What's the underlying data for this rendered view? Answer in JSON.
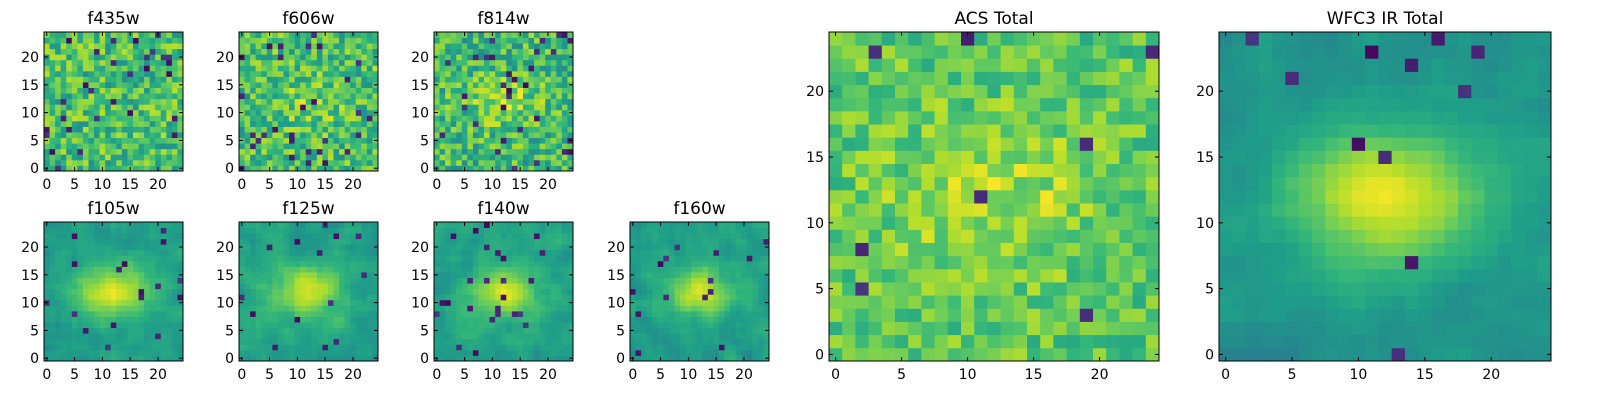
{
  "chart_data": {
    "type": "heatmap",
    "colormap": "viridis",
    "grid": false,
    "panels": [
      {
        "id": "f435w",
        "title": "f435w",
        "size": 25,
        "xticks": [
          0,
          5,
          10,
          15,
          20
        ],
        "yticks": [
          0,
          5,
          10,
          15,
          20
        ],
        "xlim": [
          -0.5,
          24.5
        ],
        "ylim": [
          -0.5,
          24.5
        ],
        "values": "pixelated noise image, 25x25 cells, mostly green/yellow with scattered dark purple pixels; no obvious source"
      },
      {
        "id": "f606w",
        "title": "f606w",
        "size": 25,
        "xticks": [
          0,
          5,
          10,
          15,
          20
        ],
        "yticks": [
          0,
          5,
          10,
          15,
          20
        ],
        "xlim": [
          -0.5,
          24.5
        ],
        "ylim": [
          -0.5,
          24.5
        ],
        "values": "pixelated noise image, 25x25 cells, faint brighter region near center (x~10-15, y~11-14)"
      },
      {
        "id": "f814w",
        "title": "f814w",
        "size": 25,
        "xticks": [
          0,
          5,
          10,
          15,
          20
        ],
        "yticks": [
          0,
          5,
          10,
          15,
          20
        ],
        "xlim": [
          -0.5,
          24.5
        ],
        "ylim": [
          -0.5,
          24.5
        ],
        "values": "pixelated noise image, 25x25 cells, faint yellow blob near center (x~12, y~12)"
      },
      {
        "id": "f105w",
        "title": "f105w",
        "size": 25,
        "xticks": [
          0,
          5,
          10,
          15,
          20
        ],
        "yticks": [
          0,
          5,
          10,
          15,
          20
        ],
        "xlim": [
          -0.5,
          24.5
        ],
        "ylim": [
          -0.5,
          24.5
        ],
        "values": "smooth image with bright elongated yellow source centered near x~12, y~12, surrounded by teal/green background with darker patches"
      },
      {
        "id": "f125w",
        "title": "f125w",
        "size": 25,
        "xticks": [
          0,
          5,
          10,
          15,
          20
        ],
        "yticks": [
          0,
          5,
          10,
          15,
          20
        ],
        "xlim": [
          -0.5,
          24.5
        ],
        "ylim": [
          -0.5,
          24.5
        ],
        "values": "smooth image with bright yellow source near x~12, y~11, mottled green/blue background"
      },
      {
        "id": "f140w",
        "title": "f140w",
        "size": 25,
        "xticks": [
          0,
          5,
          10,
          15,
          20
        ],
        "yticks": [
          0,
          5,
          10,
          15,
          20
        ],
        "xlim": [
          -0.5,
          24.5
        ],
        "ylim": [
          -0.5,
          24.5
        ],
        "values": "smooth image with bright yellow source near x~12, y~12, dark purple patch at lower right (x~21, y~1)"
      },
      {
        "id": "f160w",
        "title": "f160w",
        "size": 25,
        "xticks": [
          0,
          5,
          10,
          15,
          20
        ],
        "yticks": [
          0,
          5,
          10,
          15,
          20
        ],
        "xlim": [
          -0.5,
          24.5
        ],
        "ylim": [
          -0.5,
          24.5
        ],
        "values": "smooth image with bright yellow source near x~12, y~12, mottled green/blue background"
      },
      {
        "id": "acs_total",
        "title": "ACS Total",
        "size": 25,
        "xticks": [
          0,
          5,
          10,
          15,
          20
        ],
        "yticks": [
          0,
          5,
          10,
          15,
          20
        ],
        "xlim": [
          -0.5,
          24.5
        ],
        "ylim": [
          -0.5,
          24.5
        ],
        "values": "pixelated image, green/yellow noise with brighter central region around x~12, y~13, scattered dark purple pixels"
      },
      {
        "id": "wfc3_ir_total",
        "title": "WFC3 IR Total",
        "size": 25,
        "xticks": [
          0,
          5,
          10,
          15,
          20
        ],
        "yticks": [
          0,
          5,
          10,
          15,
          20
        ],
        "xlim": [
          -0.5,
          24.5
        ],
        "ylim": [
          -0.5,
          24.5
        ],
        "values": "smooth image, bright yellow elongated source centered near x~12, y~12, teal/blue background with darker patches at upper left and right"
      }
    ]
  }
}
